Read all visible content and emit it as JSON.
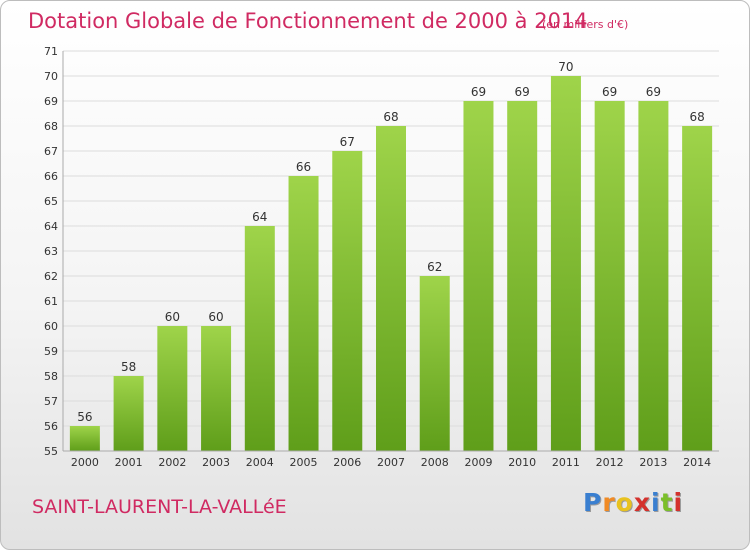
{
  "header": {
    "title": "Dotation Globale de Fonctionnement de 2000 à 2014",
    "unit": "(en milliers d'€)"
  },
  "footer": {
    "commune": "SAINT-LAURENT-LA-VALLéE",
    "logo_text": "Proxiti",
    "logo_colors": [
      "#3a7fd0",
      "#f08a24",
      "#e8c21f",
      "#d4322d",
      "#3a7fd0",
      "#7bbf2a",
      "#d4322d"
    ]
  },
  "colors": {
    "bar_top": "#9fd44a",
    "bar_bottom": "#5f9e1a",
    "grid": "#dcdcdc",
    "axis_text": "#333333"
  },
  "chart_data": {
    "type": "bar",
    "title": "Dotation Globale de Fonctionnement de 2000 à 2014",
    "subtitle": "(en milliers d'€)",
    "categories": [
      "2000",
      "2001",
      "2002",
      "2003",
      "2004",
      "2005",
      "2006",
      "2007",
      "2008",
      "2009",
      "2010",
      "2011",
      "2012",
      "2013",
      "2014"
    ],
    "values": [
      56,
      58,
      60,
      60,
      64,
      66,
      67,
      68,
      62,
      69,
      69,
      70,
      69,
      69,
      68
    ],
    "ylim": [
      55,
      71
    ],
    "yticks": [
      55,
      56,
      57,
      58,
      59,
      60,
      61,
      62,
      63,
      64,
      65,
      66,
      67,
      68,
      69,
      70,
      71
    ],
    "grid": true,
    "data_labels": true,
    "legend": "none"
  }
}
